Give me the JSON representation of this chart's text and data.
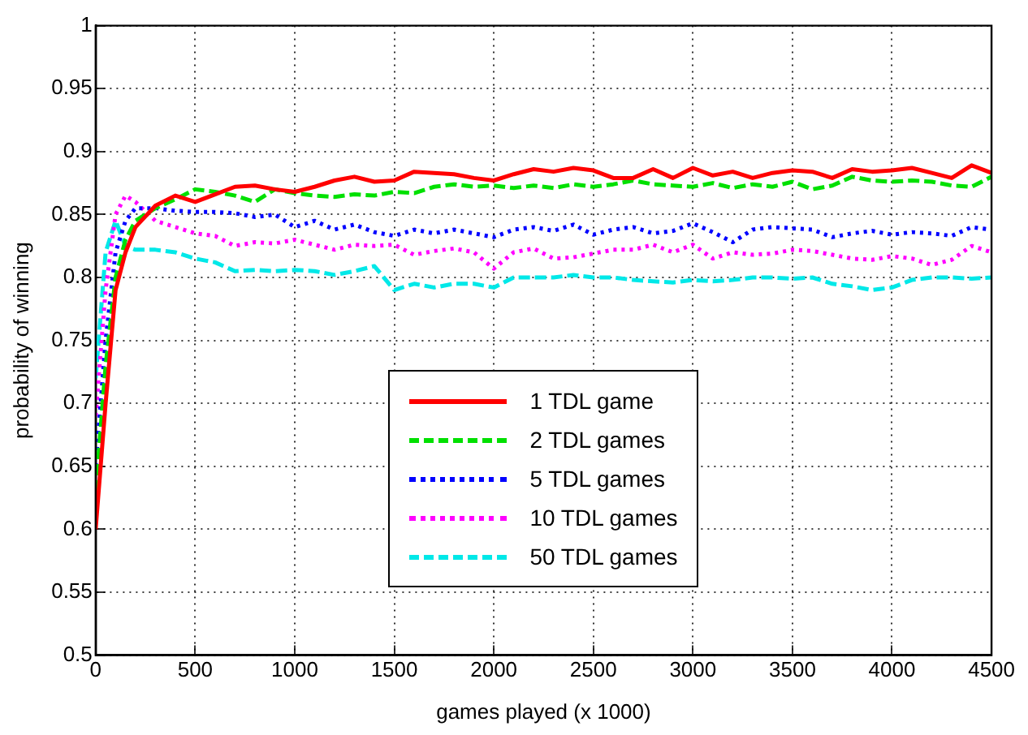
{
  "chart_data": {
    "type": "line",
    "xlabel": "games played (x 1000)",
    "ylabel": "probability of winning",
    "x": [
      0,
      50,
      100,
      150,
      200,
      300,
      400,
      500,
      600,
      700,
      800,
      900,
      1000,
      1100,
      1200,
      1300,
      1400,
      1500,
      1600,
      1700,
      1800,
      1900,
      2000,
      2100,
      2200,
      2300,
      2400,
      2500,
      2600,
      2700,
      2800,
      2900,
      3000,
      3100,
      3200,
      3300,
      3400,
      3500,
      3600,
      3700,
      3800,
      3900,
      4000,
      4100,
      4200,
      4300,
      4400,
      4500
    ],
    "xlim": [
      0,
      4500
    ],
    "xticks": [
      0,
      500,
      1000,
      1500,
      2000,
      2500,
      3000,
      3500,
      4000,
      4500
    ],
    "ylim": [
      0.5,
      1
    ],
    "yticks": [
      0.5,
      0.55,
      0.6,
      0.65,
      0.7,
      0.75,
      0.8,
      0.85,
      0.9,
      0.95,
      1
    ],
    "grid": true,
    "legend": "center",
    "marker": "none",
    "series": [
      {
        "name": "1 TDL game",
        "color": "#ff0000",
        "line_style": "solid",
        "values": [
          0.6,
          0.7,
          0.79,
          0.82,
          0.84,
          0.857,
          0.865,
          0.86,
          0.866,
          0.872,
          0.873,
          0.87,
          0.868,
          0.872,
          0.877,
          0.88,
          0.876,
          0.877,
          0.884,
          0.883,
          0.882,
          0.879,
          0.877,
          0.882,
          0.886,
          0.884,
          0.887,
          0.885,
          0.879,
          0.879,
          0.886,
          0.879,
          0.887,
          0.881,
          0.884,
          0.879,
          0.883,
          0.885,
          0.884,
          0.879,
          0.886,
          0.884,
          0.885,
          0.887,
          0.883,
          0.879,
          0.889,
          0.883
        ]
      },
      {
        "name": "2 TDL games",
        "color": "#00e000",
        "line_style": "dashed",
        "values": [
          0.63,
          0.73,
          0.8,
          0.83,
          0.845,
          0.855,
          0.862,
          0.87,
          0.868,
          0.865,
          0.86,
          0.87,
          0.867,
          0.865,
          0.864,
          0.866,
          0.865,
          0.868,
          0.867,
          0.872,
          0.874,
          0.872,
          0.873,
          0.871,
          0.873,
          0.871,
          0.874,
          0.872,
          0.874,
          0.877,
          0.874,
          0.873,
          0.872,
          0.875,
          0.871,
          0.874,
          0.872,
          0.876,
          0.87,
          0.873,
          0.88,
          0.877,
          0.876,
          0.877,
          0.876,
          0.873,
          0.872,
          0.88
        ]
      },
      {
        "name": "5 TDL games",
        "color": "#0000ff",
        "line_style": "dotted",
        "values": [
          0.65,
          0.75,
          0.82,
          0.845,
          0.855,
          0.855,
          0.853,
          0.852,
          0.852,
          0.851,
          0.848,
          0.85,
          0.84,
          0.845,
          0.838,
          0.842,
          0.836,
          0.833,
          0.838,
          0.835,
          0.838,
          0.835,
          0.832,
          0.838,
          0.84,
          0.837,
          0.842,
          0.834,
          0.838,
          0.84,
          0.835,
          0.837,
          0.843,
          0.836,
          0.828,
          0.838,
          0.84,
          0.839,
          0.838,
          0.832,
          0.835,
          0.837,
          0.834,
          0.836,
          0.835,
          0.833,
          0.84,
          0.838
        ]
      },
      {
        "name": "10 TDL games",
        "color": "#ff00ff",
        "line_style": "dotted",
        "values": [
          0.69,
          0.79,
          0.85,
          0.865,
          0.86,
          0.845,
          0.84,
          0.835,
          0.833,
          0.825,
          0.828,
          0.827,
          0.83,
          0.826,
          0.822,
          0.826,
          0.825,
          0.826,
          0.818,
          0.821,
          0.823,
          0.82,
          0.807,
          0.82,
          0.823,
          0.815,
          0.816,
          0.819,
          0.822,
          0.822,
          0.826,
          0.82,
          0.826,
          0.815,
          0.82,
          0.818,
          0.819,
          0.822,
          0.821,
          0.818,
          0.815,
          0.814,
          0.817,
          0.815,
          0.81,
          0.814,
          0.825,
          0.82
        ]
      },
      {
        "name": "50 TDL games",
        "color": "#00e8e8",
        "line_style": "dashed",
        "values": [
          0.72,
          0.82,
          0.845,
          0.825,
          0.822,
          0.822,
          0.82,
          0.815,
          0.812,
          0.805,
          0.806,
          0.805,
          0.806,
          0.805,
          0.802,
          0.805,
          0.809,
          0.79,
          0.795,
          0.792,
          0.795,
          0.795,
          0.792,
          0.8,
          0.8,
          0.8,
          0.802,
          0.8,
          0.8,
          0.798,
          0.797,
          0.796,
          0.798,
          0.797,
          0.798,
          0.8,
          0.8,
          0.799,
          0.8,
          0.795,
          0.793,
          0.79,
          0.792,
          0.798,
          0.8,
          0.8,
          0.799,
          0.8
        ]
      }
    ]
  }
}
